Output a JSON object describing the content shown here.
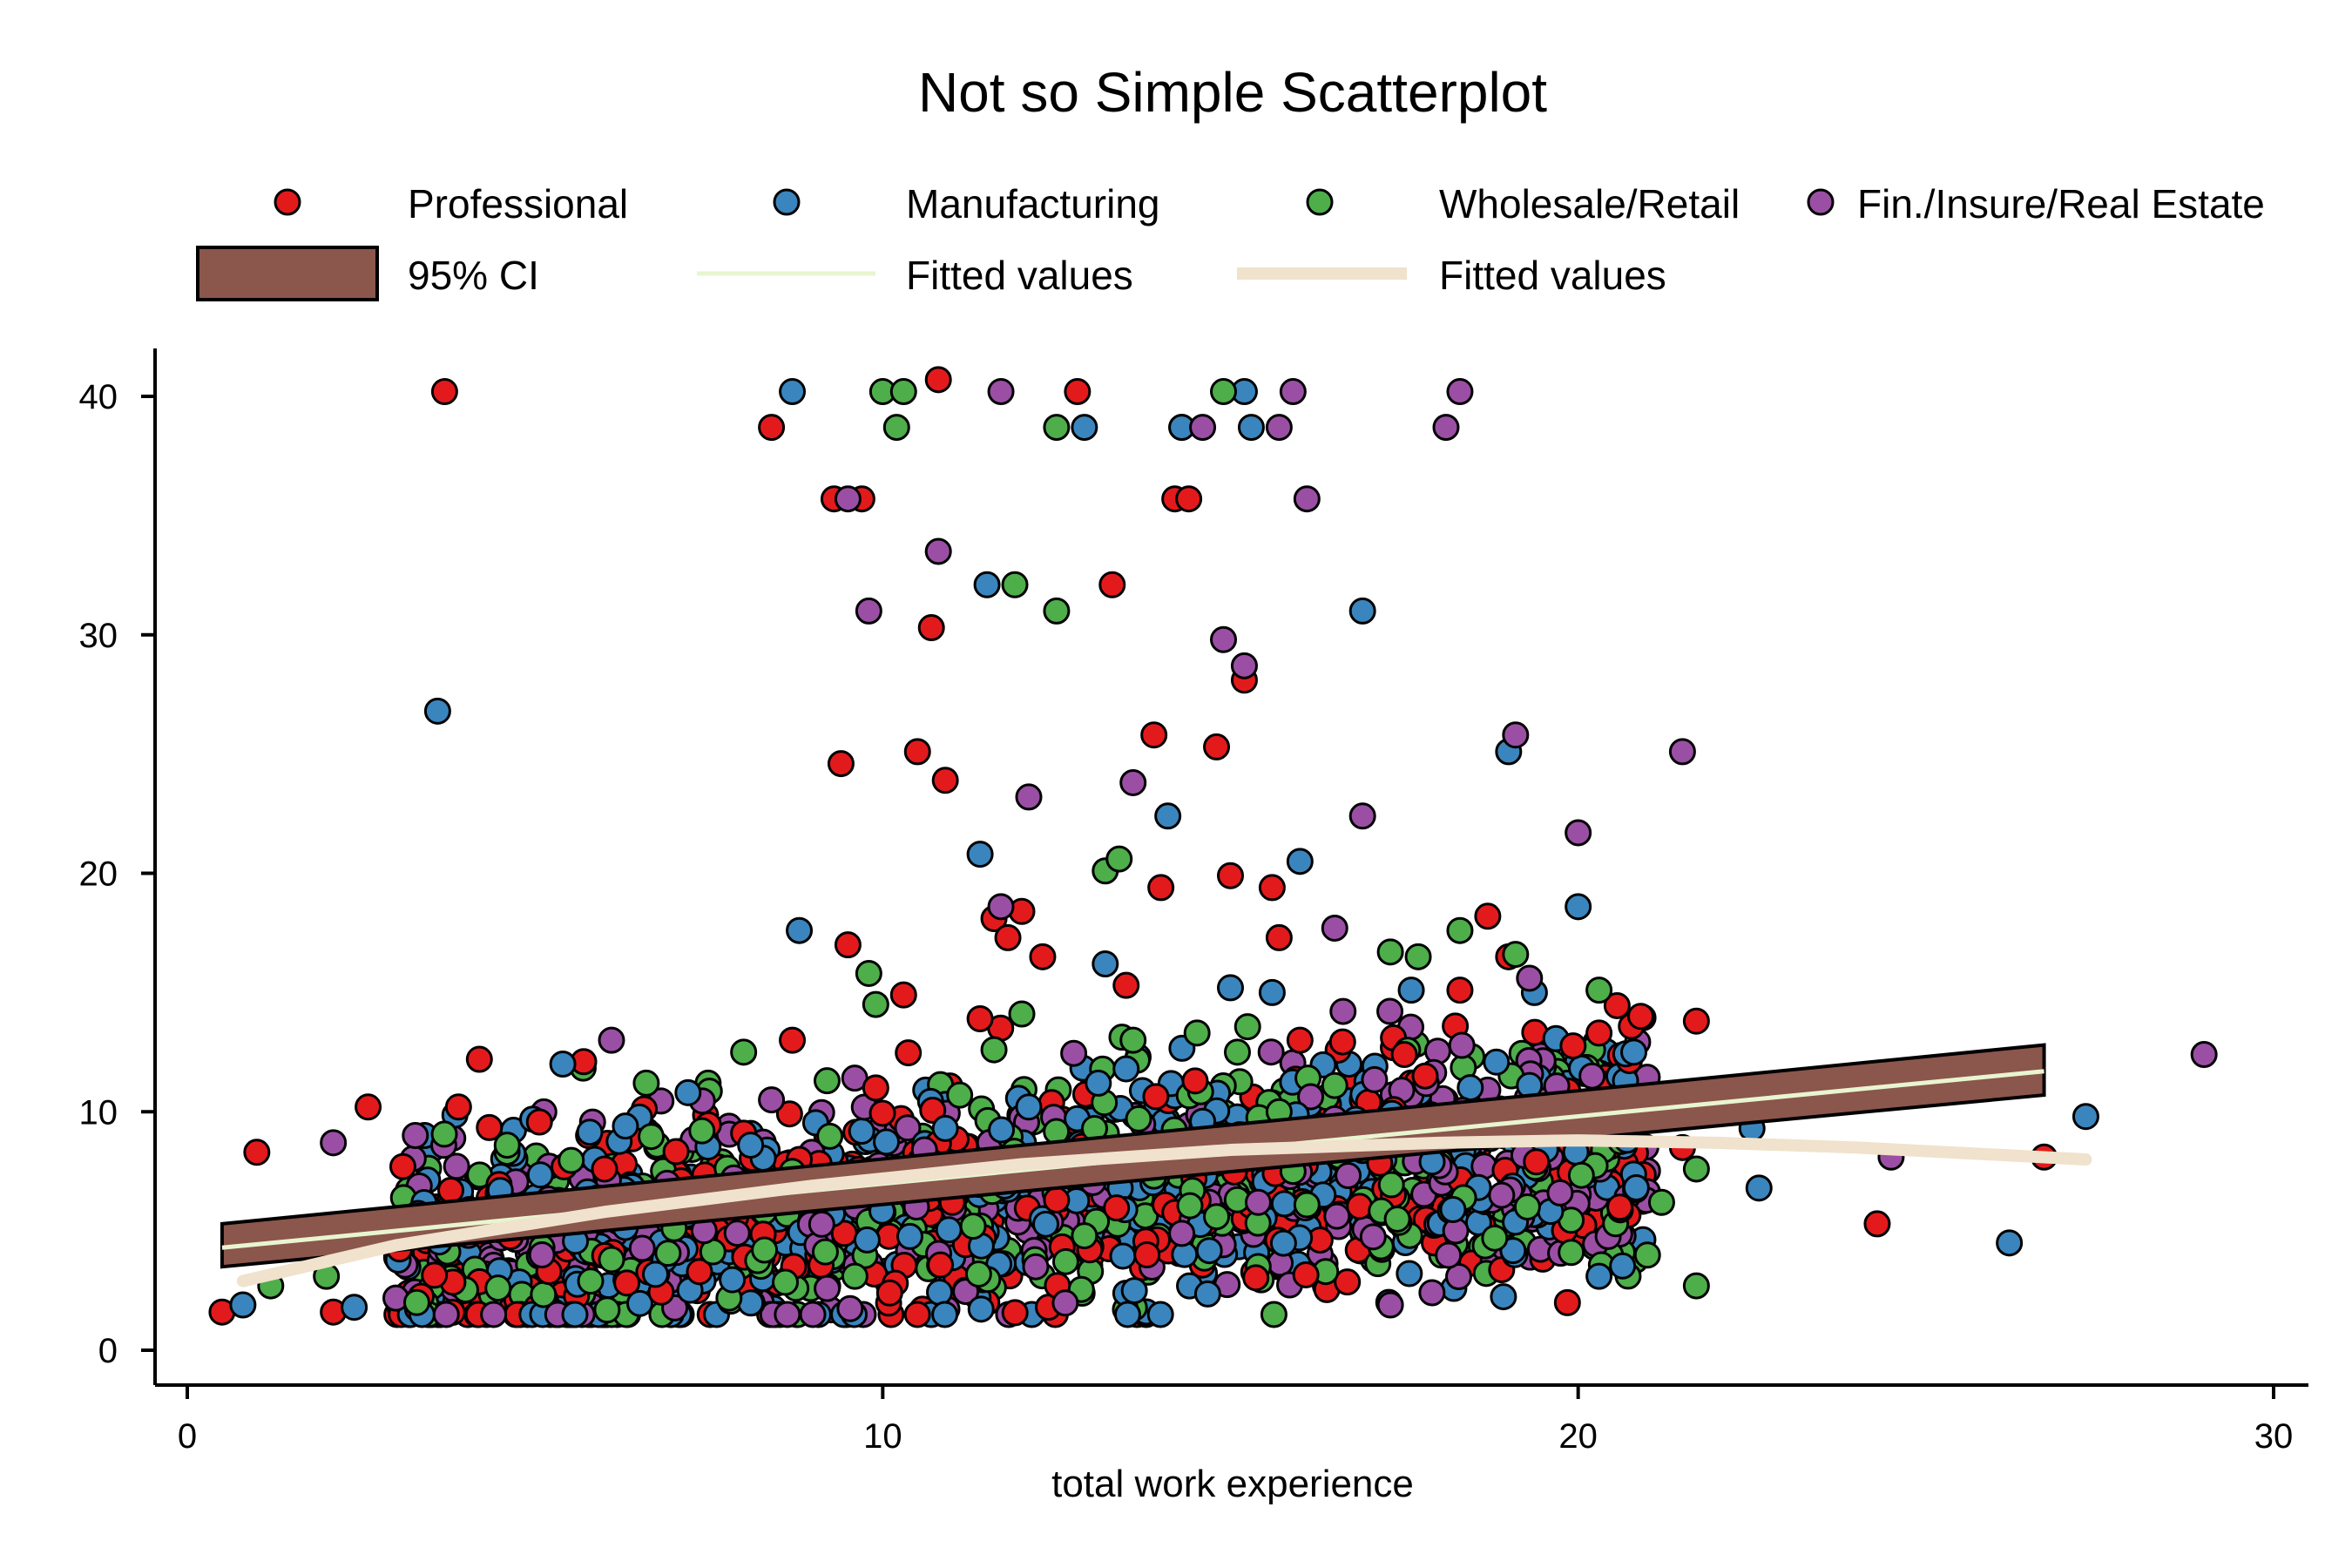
{
  "chart_data": {
    "type": "scatter",
    "title": "Not so Simple Scatterplot",
    "xlabel": "total work experience",
    "ylabel": "",
    "xlim": [
      0,
      30
    ],
    "ylim": [
      0,
      40
    ],
    "xticks": [
      0,
      10,
      20,
      30
    ],
    "yticks": [
      0,
      10,
      20,
      30,
      40
    ],
    "grid": false,
    "legend_position": "top",
    "legend_entries": [
      {
        "label": "Professional",
        "kind": "marker",
        "color": "#e31a1c"
      },
      {
        "label": "Manufacturing",
        "kind": "marker",
        "color": "#3a85bd"
      },
      {
        "label": "Wholesale/Retail",
        "kind": "marker",
        "color": "#4dae4a"
      },
      {
        "label": "Fin./Insure/Real Estate",
        "kind": "marker",
        "color": "#9a4fa4"
      },
      {
        "label": "95% CI",
        "kind": "band",
        "color": "#8b564c"
      },
      {
        "label": "Fitted values",
        "kind": "line",
        "color": "#e8f5d0"
      },
      {
        "label": "Fitted values",
        "kind": "line",
        "color": "#f0e2cc"
      }
    ],
    "series": [
      {
        "color": "#e31a1c",
        "points": [
          [
            0.5,
            1.6
          ],
          [
            1.0,
            8.3
          ],
          [
            2.1,
            1.6
          ],
          [
            2.6,
            10.2
          ],
          [
            3.1,
            7.7
          ],
          [
            3.7,
            40.2
          ],
          [
            3.9,
            10.2
          ],
          [
            4.2,
            12.2
          ],
          [
            5.2,
            3.3
          ],
          [
            5.7,
            12.1
          ],
          [
            6.0,
            7.6
          ],
          [
            7.1,
            7.1
          ],
          [
            8.0,
            9.1
          ],
          [
            8.4,
            38.7
          ],
          [
            8.7,
            13.0
          ],
          [
            9.3,
            35.7
          ],
          [
            9.4,
            24.6
          ],
          [
            9.7,
            35.7
          ],
          [
            9.9,
            11.0
          ],
          [
            10.3,
            14.9
          ],
          [
            10.5,
            25.1
          ],
          [
            10.7,
            30.3
          ],
          [
            10.8,
            40.7
          ],
          [
            10.9,
            23.9
          ],
          [
            11.4,
            13.9
          ],
          [
            11.6,
            18.1
          ],
          [
            11.8,
            17.3
          ],
          [
            12.0,
            18.4
          ],
          [
            12.3,
            16.5
          ],
          [
            12.8,
            40.2
          ],
          [
            13.3,
            32.1
          ],
          [
            13.5,
            15.3
          ],
          [
            13.9,
            25.8
          ],
          [
            14.0,
            19.4
          ],
          [
            14.2,
            35.7
          ],
          [
            14.3,
            38.7
          ],
          [
            14.4,
            35.7
          ],
          [
            14.8,
            25.3
          ],
          [
            15.0,
            19.9
          ],
          [
            15.2,
            28.1
          ],
          [
            15.6,
            19.4
          ],
          [
            15.7,
            17.3
          ],
          [
            16.0,
            13.0
          ],
          [
            17.5,
            12.4
          ],
          [
            17.8,
            11.5
          ],
          [
            18.3,
            15.1
          ],
          [
            18.7,
            18.2
          ],
          [
            19.0,
            16.5
          ],
          [
            19.4,
            7.9
          ],
          [
            20.0,
            9.8
          ],
          [
            20.3,
            13.3
          ],
          [
            20.6,
            6.0
          ],
          [
            20.9,
            14.0
          ],
          [
            21.5,
            8.5
          ],
          [
            21.7,
            13.8
          ],
          [
            24.3,
            5.3
          ],
          [
            26.7,
            8.1
          ],
          [
            9.5,
            17.0
          ],
          [
            8.8,
            8.0
          ],
          [
            12.5,
            6.3
          ],
          [
            13.8,
            4.0
          ],
          [
            16.4,
            8.8
          ],
          [
            10.1,
            2.4
          ],
          [
            11.0,
            6.2
          ]
        ]
      },
      {
        "color": "#3a85bd",
        "points": [
          [
            0.8,
            1.9
          ],
          [
            2.4,
            1.8
          ],
          [
            3.6,
            26.8
          ],
          [
            4.5,
            6.7
          ],
          [
            5.4,
            12.0
          ],
          [
            6.3,
            9.4
          ],
          [
            7.2,
            10.8
          ],
          [
            8.1,
            8.6
          ],
          [
            8.7,
            40.2
          ],
          [
            8.8,
            17.6
          ],
          [
            9.3,
            6.6
          ],
          [
            11.4,
            20.8
          ],
          [
            11.5,
            32.1
          ],
          [
            12.9,
            38.7
          ],
          [
            13.1,
            11.2
          ],
          [
            13.5,
            11.8
          ],
          [
            14.1,
            22.4
          ],
          [
            14.3,
            38.7
          ],
          [
            15.0,
            15.2
          ],
          [
            15.2,
            40.2
          ],
          [
            15.3,
            38.7
          ],
          [
            16.0,
            20.5
          ],
          [
            16.9,
            31.0
          ],
          [
            17.6,
            15.1
          ],
          [
            18.6,
            9.5
          ],
          [
            19.0,
            25.1
          ],
          [
            20.0,
            18.6
          ],
          [
            20.5,
            10.1
          ],
          [
            20.8,
            12.5
          ],
          [
            21.3,
            10.7
          ],
          [
            22.5,
            9.3
          ],
          [
            22.6,
            6.8
          ],
          [
            26.2,
            4.5
          ],
          [
            27.3,
            9.8
          ],
          [
            10.9,
            9.3
          ],
          [
            12.1,
            10.2
          ],
          [
            17.9,
            7.9
          ],
          [
            19.3,
            11.1
          ],
          [
            13.2,
            16.2
          ],
          [
            15.6,
            15.0
          ],
          [
            18.2,
            5.9
          ],
          [
            20.3,
            3.1
          ],
          [
            16.4,
            8.5
          ],
          [
            14.6,
            9.6
          ]
        ]
      },
      {
        "color": "#4dae4a",
        "points": [
          [
            1.2,
            2.7
          ],
          [
            2.0,
            3.1
          ],
          [
            3.3,
            2.0
          ],
          [
            4.6,
            8.6
          ],
          [
            5.8,
            2.9
          ],
          [
            6.6,
            11.2
          ],
          [
            7.4,
            9.2
          ],
          [
            8.0,
            12.5
          ],
          [
            8.7,
            7.5
          ],
          [
            9.2,
            11.3
          ],
          [
            9.8,
            15.8
          ],
          [
            9.9,
            14.5
          ],
          [
            10.0,
            40.2
          ],
          [
            10.2,
            38.7
          ],
          [
            10.3,
            40.2
          ],
          [
            11.6,
            12.6
          ],
          [
            11.9,
            32.1
          ],
          [
            12.0,
            14.1
          ],
          [
            12.5,
            38.7
          ],
          [
            12.5,
            31.0
          ],
          [
            13.2,
            20.1
          ],
          [
            13.4,
            20.6
          ],
          [
            13.6,
            13.0
          ],
          [
            14.9,
            40.2
          ],
          [
            15.1,
            12.5
          ],
          [
            15.7,
            10.0
          ],
          [
            16.5,
            11.1
          ],
          [
            17.3,
            16.7
          ],
          [
            17.7,
            16.5
          ],
          [
            18.3,
            17.6
          ],
          [
            19.1,
            16.6
          ],
          [
            19.9,
            4.1
          ],
          [
            20.3,
            15.1
          ],
          [
            21.2,
            6.2
          ],
          [
            21.7,
            7.6
          ],
          [
            21.7,
            2.7
          ],
          [
            8.3,
            4.2
          ],
          [
            9.6,
            3.1
          ],
          [
            11.3,
            5.2
          ],
          [
            12.9,
            4.8
          ],
          [
            14.8,
            5.6
          ],
          [
            16.1,
            6.1
          ],
          [
            17.4,
            5.5
          ],
          [
            18.8,
            4.7
          ],
          [
            10.7,
            7.9
          ],
          [
            13.9,
            7.3
          ],
          [
            15.9,
            7.5
          ],
          [
            7.0,
            5.1
          ],
          [
            6.1,
            3.8
          ],
          [
            5.1,
            4.3
          ]
        ]
      },
      {
        "color": "#9a4fa4",
        "points": [
          [
            2.1,
            8.7
          ],
          [
            5.1,
            4.0
          ],
          [
            6.1,
            13.0
          ],
          [
            6.9,
            7.0
          ],
          [
            8.4,
            10.5
          ],
          [
            9.5,
            35.7
          ],
          [
            9.8,
            31.0
          ],
          [
            10.8,
            33.5
          ],
          [
            11.7,
            18.6
          ],
          [
            11.7,
            40.2
          ],
          [
            12.1,
            23.2
          ],
          [
            13.6,
            23.8
          ],
          [
            14.6,
            38.7
          ],
          [
            14.9,
            29.8
          ],
          [
            15.2,
            28.7
          ],
          [
            15.7,
            38.7
          ],
          [
            15.9,
            40.2
          ],
          [
            16.1,
            35.7
          ],
          [
            16.5,
            17.7
          ],
          [
            16.9,
            22.4
          ],
          [
            17.3,
            1.9
          ],
          [
            18.1,
            38.7
          ],
          [
            18.3,
            40.2
          ],
          [
            19.1,
            25.8
          ],
          [
            19.3,
            15.6
          ],
          [
            20.0,
            21.7
          ],
          [
            20.2,
            11.5
          ],
          [
            21.5,
            25.1
          ],
          [
            24.5,
            8.1
          ],
          [
            29.0,
            12.4
          ],
          [
            13.8,
            8.1
          ],
          [
            15.4,
            6.2
          ],
          [
            17.1,
            9.3
          ],
          [
            12.2,
            3.5
          ],
          [
            10.6,
            8.4
          ],
          [
            18.9,
            6.5
          ],
          [
            14.3,
            4.9
          ]
        ]
      }
    ],
    "linear_fit": {
      "x_start": 0.5,
      "x_end": 26.7,
      "y_start": 4.3,
      "y_end": 11.7
    },
    "ci_band": {
      "x": [
        0.5,
        26.7
      ],
      "lower": [
        3.5,
        10.7
      ],
      "upper": [
        5.3,
        12.8
      ]
    },
    "quadratic_fit": {
      "x": [
        0.8,
        3,
        6,
        9,
        12,
        15,
        18,
        20,
        22,
        24,
        26,
        27.3
      ],
      "y": [
        2.9,
        4.4,
        5.8,
        6.9,
        7.8,
        8.4,
        8.7,
        8.8,
        8.7,
        8.5,
        8.2,
        8.0
      ]
    },
    "cloud": {
      "count": 1800,
      "x_range": [
        3,
        21
      ],
      "y_range": [
        1.5,
        15
      ],
      "seed": 7
    }
  }
}
